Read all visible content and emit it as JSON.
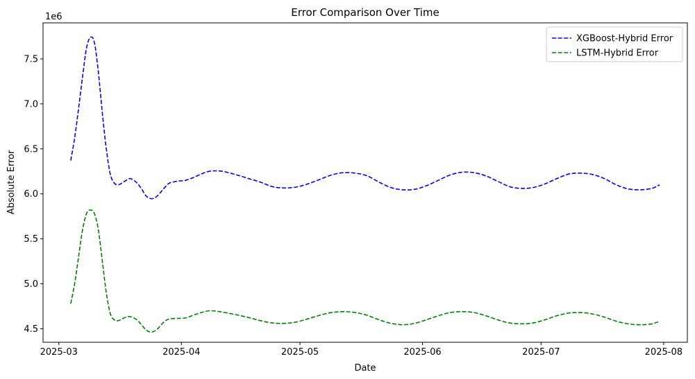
{
  "chart_data": {
    "type": "line",
    "title": "Error Comparison Over Time",
    "xlabel": "Date",
    "ylabel": "Absolute Error",
    "y_multiplier_label": "1e6",
    "xlim": [
      "2025-02-25",
      "2025-08-07"
    ],
    "ylim": [
      4.35,
      7.9
    ],
    "x_ticks": [
      "2025-03-01",
      "2025-04-01",
      "2025-05-01",
      "2025-06-01",
      "2025-07-01",
      "2025-08-01"
    ],
    "x_tick_labels": [
      "2025-03",
      "2025-04",
      "2025-05",
      "2025-06",
      "2025-07",
      "2025-08"
    ],
    "y_ticks": [
      4.5,
      5.0,
      5.5,
      6.0,
      6.5,
      7.0,
      7.5
    ],
    "y_tick_labels": [
      "4.5",
      "5.0",
      "5.5",
      "6.0",
      "6.5",
      "7.0",
      "7.5"
    ],
    "legend_position": "top-right",
    "grid": false,
    "series": [
      {
        "name": "XGBoost-Hybrid Error",
        "color": "#0000ff",
        "style": "dashed",
        "points": [
          [
            "2025-03-04",
            6.37
          ],
          [
            "2025-03-05",
            6.62
          ],
          [
            "2025-03-06",
            6.95
          ],
          [
            "2025-03-07",
            7.3
          ],
          [
            "2025-03-08",
            7.62
          ],
          [
            "2025-03-09",
            7.74
          ],
          [
            "2025-03-10",
            7.68
          ],
          [
            "2025-03-11",
            7.35
          ],
          [
            "2025-03-12",
            6.9
          ],
          [
            "2025-03-13",
            6.5
          ],
          [
            "2025-03-14",
            6.22
          ],
          [
            "2025-03-15",
            6.12
          ],
          [
            "2025-03-16",
            6.1
          ],
          [
            "2025-03-17",
            6.12
          ],
          [
            "2025-03-18",
            6.15
          ],
          [
            "2025-03-19",
            6.17
          ],
          [
            "2025-03-20",
            6.15
          ],
          [
            "2025-03-21",
            6.11
          ],
          [
            "2025-03-22",
            6.05
          ],
          [
            "2025-03-23",
            5.98
          ],
          [
            "2025-03-24",
            5.95
          ],
          [
            "2025-03-25",
            5.95
          ],
          [
            "2025-03-26",
            5.98
          ],
          [
            "2025-03-27",
            6.03
          ],
          [
            "2025-03-28",
            6.08
          ],
          [
            "2025-03-29",
            6.12
          ],
          [
            "2025-03-31",
            6.14
          ],
          [
            "2025-04-02",
            6.15
          ],
          [
            "2025-04-04",
            6.18
          ],
          [
            "2025-04-06",
            6.22
          ],
          [
            "2025-04-08",
            6.25
          ],
          [
            "2025-04-10",
            6.255
          ],
          [
            "2025-04-12",
            6.245
          ],
          [
            "2025-04-15",
            6.21
          ],
          [
            "2025-04-18",
            6.17
          ],
          [
            "2025-04-21",
            6.13
          ],
          [
            "2025-04-24",
            6.08
          ],
          [
            "2025-04-27",
            6.065
          ],
          [
            "2025-04-30",
            6.075
          ],
          [
            "2025-05-03",
            6.11
          ],
          [
            "2025-05-06",
            6.16
          ],
          [
            "2025-05-09",
            6.21
          ],
          [
            "2025-05-12",
            6.235
          ],
          [
            "2025-05-15",
            6.23
          ],
          [
            "2025-05-18",
            6.2
          ],
          [
            "2025-05-21",
            6.13
          ],
          [
            "2025-05-24",
            6.07
          ],
          [
            "2025-05-27",
            6.045
          ],
          [
            "2025-05-30",
            6.05
          ],
          [
            "2025-06-02",
            6.09
          ],
          [
            "2025-06-05",
            6.15
          ],
          [
            "2025-06-08",
            6.21
          ],
          [
            "2025-06-11",
            6.24
          ],
          [
            "2025-06-14",
            6.235
          ],
          [
            "2025-06-17",
            6.2
          ],
          [
            "2025-06-20",
            6.14
          ],
          [
            "2025-06-23",
            6.08
          ],
          [
            "2025-06-26",
            6.06
          ],
          [
            "2025-06-29",
            6.07
          ],
          [
            "2025-07-02",
            6.11
          ],
          [
            "2025-07-05",
            6.17
          ],
          [
            "2025-07-08",
            6.22
          ],
          [
            "2025-07-11",
            6.23
          ],
          [
            "2025-07-14",
            6.215
          ],
          [
            "2025-07-17",
            6.17
          ],
          [
            "2025-07-20",
            6.1
          ],
          [
            "2025-07-23",
            6.055
          ],
          [
            "2025-07-26",
            6.045
          ],
          [
            "2025-07-29",
            6.06
          ],
          [
            "2025-07-31",
            6.1
          ]
        ]
      },
      {
        "name": "LSTM-Hybrid Error",
        "color": "#008000",
        "style": "dashed",
        "points": [
          [
            "2025-03-04",
            4.78
          ],
          [
            "2025-03-05",
            5.0
          ],
          [
            "2025-03-06",
            5.3
          ],
          [
            "2025-03-07",
            5.6
          ],
          [
            "2025-03-08",
            5.78
          ],
          [
            "2025-03-09",
            5.82
          ],
          [
            "2025-03-10",
            5.78
          ],
          [
            "2025-03-11",
            5.6
          ],
          [
            "2025-03-12",
            5.25
          ],
          [
            "2025-03-13",
            4.9
          ],
          [
            "2025-03-14",
            4.67
          ],
          [
            "2025-03-15",
            4.6
          ],
          [
            "2025-03-16",
            4.59
          ],
          [
            "2025-03-17",
            4.61
          ],
          [
            "2025-03-18",
            4.63
          ],
          [
            "2025-03-19",
            4.635
          ],
          [
            "2025-03-20",
            4.62
          ],
          [
            "2025-03-21",
            4.59
          ],
          [
            "2025-03-22",
            4.54
          ],
          [
            "2025-03-23",
            4.49
          ],
          [
            "2025-03-24",
            4.465
          ],
          [
            "2025-03-25",
            4.47
          ],
          [
            "2025-03-26",
            4.5
          ],
          [
            "2025-03-27",
            4.55
          ],
          [
            "2025-03-28",
            4.59
          ],
          [
            "2025-03-29",
            4.61
          ],
          [
            "2025-03-31",
            4.615
          ],
          [
            "2025-04-02",
            4.62
          ],
          [
            "2025-04-04",
            4.65
          ],
          [
            "2025-04-06",
            4.68
          ],
          [
            "2025-04-08",
            4.7
          ],
          [
            "2025-04-10",
            4.695
          ],
          [
            "2025-04-12",
            4.68
          ],
          [
            "2025-04-15",
            4.655
          ],
          [
            "2025-04-18",
            4.625
          ],
          [
            "2025-04-21",
            4.59
          ],
          [
            "2025-04-24",
            4.565
          ],
          [
            "2025-04-27",
            4.56
          ],
          [
            "2025-04-30",
            4.575
          ],
          [
            "2025-05-03",
            4.61
          ],
          [
            "2025-05-06",
            4.65
          ],
          [
            "2025-05-09",
            4.68
          ],
          [
            "2025-05-12",
            4.69
          ],
          [
            "2025-05-15",
            4.68
          ],
          [
            "2025-05-18",
            4.65
          ],
          [
            "2025-05-21",
            4.6
          ],
          [
            "2025-05-24",
            4.56
          ],
          [
            "2025-05-27",
            4.545
          ],
          [
            "2025-05-30",
            4.56
          ],
          [
            "2025-06-02",
            4.6
          ],
          [
            "2025-06-05",
            4.645
          ],
          [
            "2025-06-08",
            4.68
          ],
          [
            "2025-06-11",
            4.69
          ],
          [
            "2025-06-14",
            4.68
          ],
          [
            "2025-06-17",
            4.645
          ],
          [
            "2025-06-20",
            4.6
          ],
          [
            "2025-06-23",
            4.565
          ],
          [
            "2025-06-26",
            4.555
          ],
          [
            "2025-06-29",
            4.565
          ],
          [
            "2025-07-02",
            4.6
          ],
          [
            "2025-07-05",
            4.645
          ],
          [
            "2025-07-08",
            4.675
          ],
          [
            "2025-07-11",
            4.68
          ],
          [
            "2025-07-14",
            4.665
          ],
          [
            "2025-07-17",
            4.63
          ],
          [
            "2025-07-20",
            4.585
          ],
          [
            "2025-07-23",
            4.555
          ],
          [
            "2025-07-26",
            4.545
          ],
          [
            "2025-07-29",
            4.555
          ],
          [
            "2025-07-31",
            4.585
          ]
        ]
      }
    ]
  }
}
